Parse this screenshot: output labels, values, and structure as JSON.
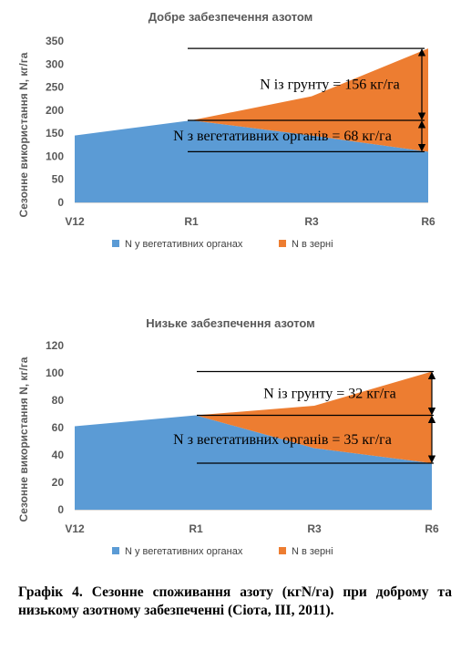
{
  "colors": {
    "vegetative": "#5b9bd5",
    "grain": "#ed7d31",
    "axis_text": "#595959"
  },
  "chart_data": [
    {
      "type": "area",
      "stacked": true,
      "title": "Добре забезпечення азотом",
      "ylabel": "Сезонне використання N, кг/га",
      "xlabel": "",
      "categories": [
        "V12",
        "R1",
        "R3",
        "R6"
      ],
      "ylim": [
        0,
        350
      ],
      "yticks": [
        0,
        50,
        100,
        150,
        200,
        250,
        300,
        350
      ],
      "grid": false,
      "legend_position": "bottom",
      "series": [
        {
          "name": "N у вегетативних органах",
          "values": [
            145,
            178,
            145,
            110
          ]
        },
        {
          "name": "N в зерні",
          "values": [
            0,
            0,
            85,
            224
          ]
        }
      ],
      "annotations": [
        {
          "text": "N із грунту = 156 кг/га",
          "from": 178,
          "to": 334
        },
        {
          "text": "N з вегетативних органів = 68 кг/га",
          "from": 110,
          "to": 178
        }
      ]
    },
    {
      "type": "area",
      "stacked": true,
      "title": "Низьке забезпечення азотом",
      "ylabel": "Сезонне використання N, кг/га",
      "xlabel": "",
      "categories": [
        "V12",
        "R1",
        "R3",
        "R6"
      ],
      "ylim": [
        0,
        120
      ],
      "yticks": [
        0,
        20,
        40,
        60,
        80,
        100,
        120
      ],
      "grid": false,
      "legend_position": "bottom",
      "series": [
        {
          "name": "N у вегетативних органах",
          "values": [
            61,
            69,
            45,
            34
          ]
        },
        {
          "name": "N в зерні",
          "values": [
            0,
            0,
            31,
            67
          ]
        }
      ],
      "annotations": [
        {
          "text": "N із грунту = 32 кг/га",
          "from": 69,
          "to": 101
        },
        {
          "text": "N з вегетативних органів = 35 кг/га",
          "from": 34,
          "to": 69
        }
      ]
    }
  ],
  "caption": "Графік 4. Сезонне споживання азоту (кгN/га) при доброму та низькому азотному забезпеченні (Сіота, ІІІ, 2011)."
}
